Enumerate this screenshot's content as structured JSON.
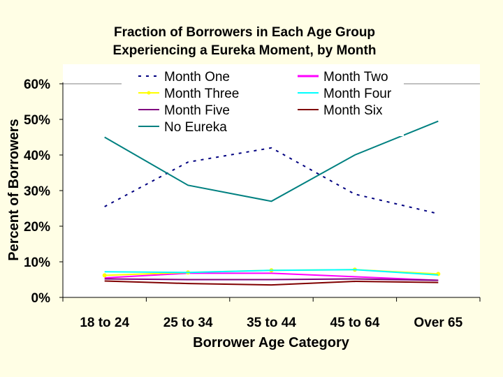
{
  "chart_data": {
    "type": "line",
    "title": "Fraction of Borrowers in Each Age Group",
    "subtitle": "Experiencing a Eureka Moment, by Month",
    "xlabel": "Borrower Age Category",
    "ylabel": "Percent of Borrowers",
    "categories": [
      "18 to 24",
      "25 to 34",
      "35 to 44",
      "45 to 64",
      "Over 65"
    ],
    "ylim": [
      0,
      60
    ],
    "y_ticks": [
      "0%",
      "10%",
      "20%",
      "30%",
      "40%",
      "50%",
      "60%"
    ],
    "legend_position": "top",
    "grid": "horizontal",
    "series": [
      {
        "name": "Month One",
        "values": [
          25.5,
          38,
          42,
          29,
          23.5
        ],
        "color": "#000080",
        "style": "dotted"
      },
      {
        "name": "Month Two",
        "values": [
          5.5,
          6.8,
          6.8,
          5.8,
          4.8
        ],
        "color": "#ff00ff",
        "style": "solid"
      },
      {
        "name": "Month Three",
        "values": [
          6.2,
          7.0,
          7.6,
          7.8,
          6.6
        ],
        "color": "#ffff00",
        "style": "solid-marker"
      },
      {
        "name": "Month Four",
        "values": [
          7.2,
          7.0,
          7.6,
          7.8,
          6.3
        ],
        "color": "#00ffff",
        "style": "solid"
      },
      {
        "name": "Month Five",
        "values": [
          5.2,
          5.0,
          5.0,
          5.2,
          4.8
        ],
        "color": "#800080",
        "style": "solid"
      },
      {
        "name": "Month Six",
        "values": [
          4.6,
          3.9,
          3.5,
          4.5,
          4.2
        ],
        "color": "#800000",
        "style": "solid"
      },
      {
        "name": "No Eureka",
        "values": [
          45,
          31.5,
          27,
          40,
          49.5
        ],
        "color": "#008080",
        "style": "solid"
      }
    ]
  }
}
